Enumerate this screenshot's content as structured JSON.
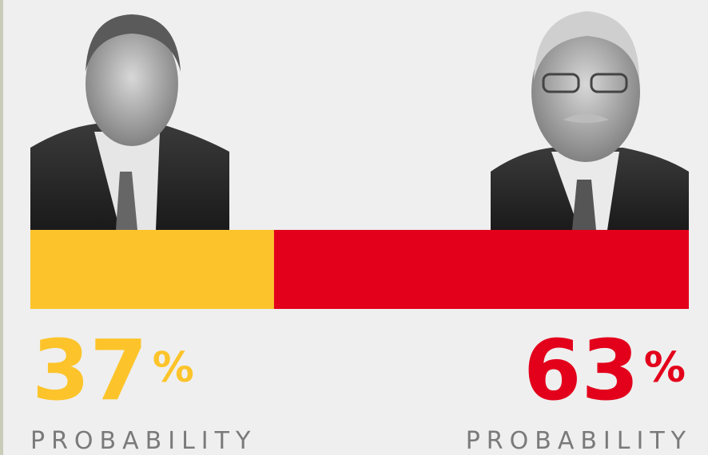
{
  "chart_data": {
    "type": "stacked-bar",
    "unit": "%",
    "xlim": [
      0,
      100
    ],
    "series": [
      {
        "color": "#fcc42a",
        "values": [
          37
        ],
        "caption": "PROBABILITY"
      },
      {
        "color": "#e3001b",
        "values": [
          63
        ],
        "caption": "PROBABILITY"
      }
    ]
  }
}
